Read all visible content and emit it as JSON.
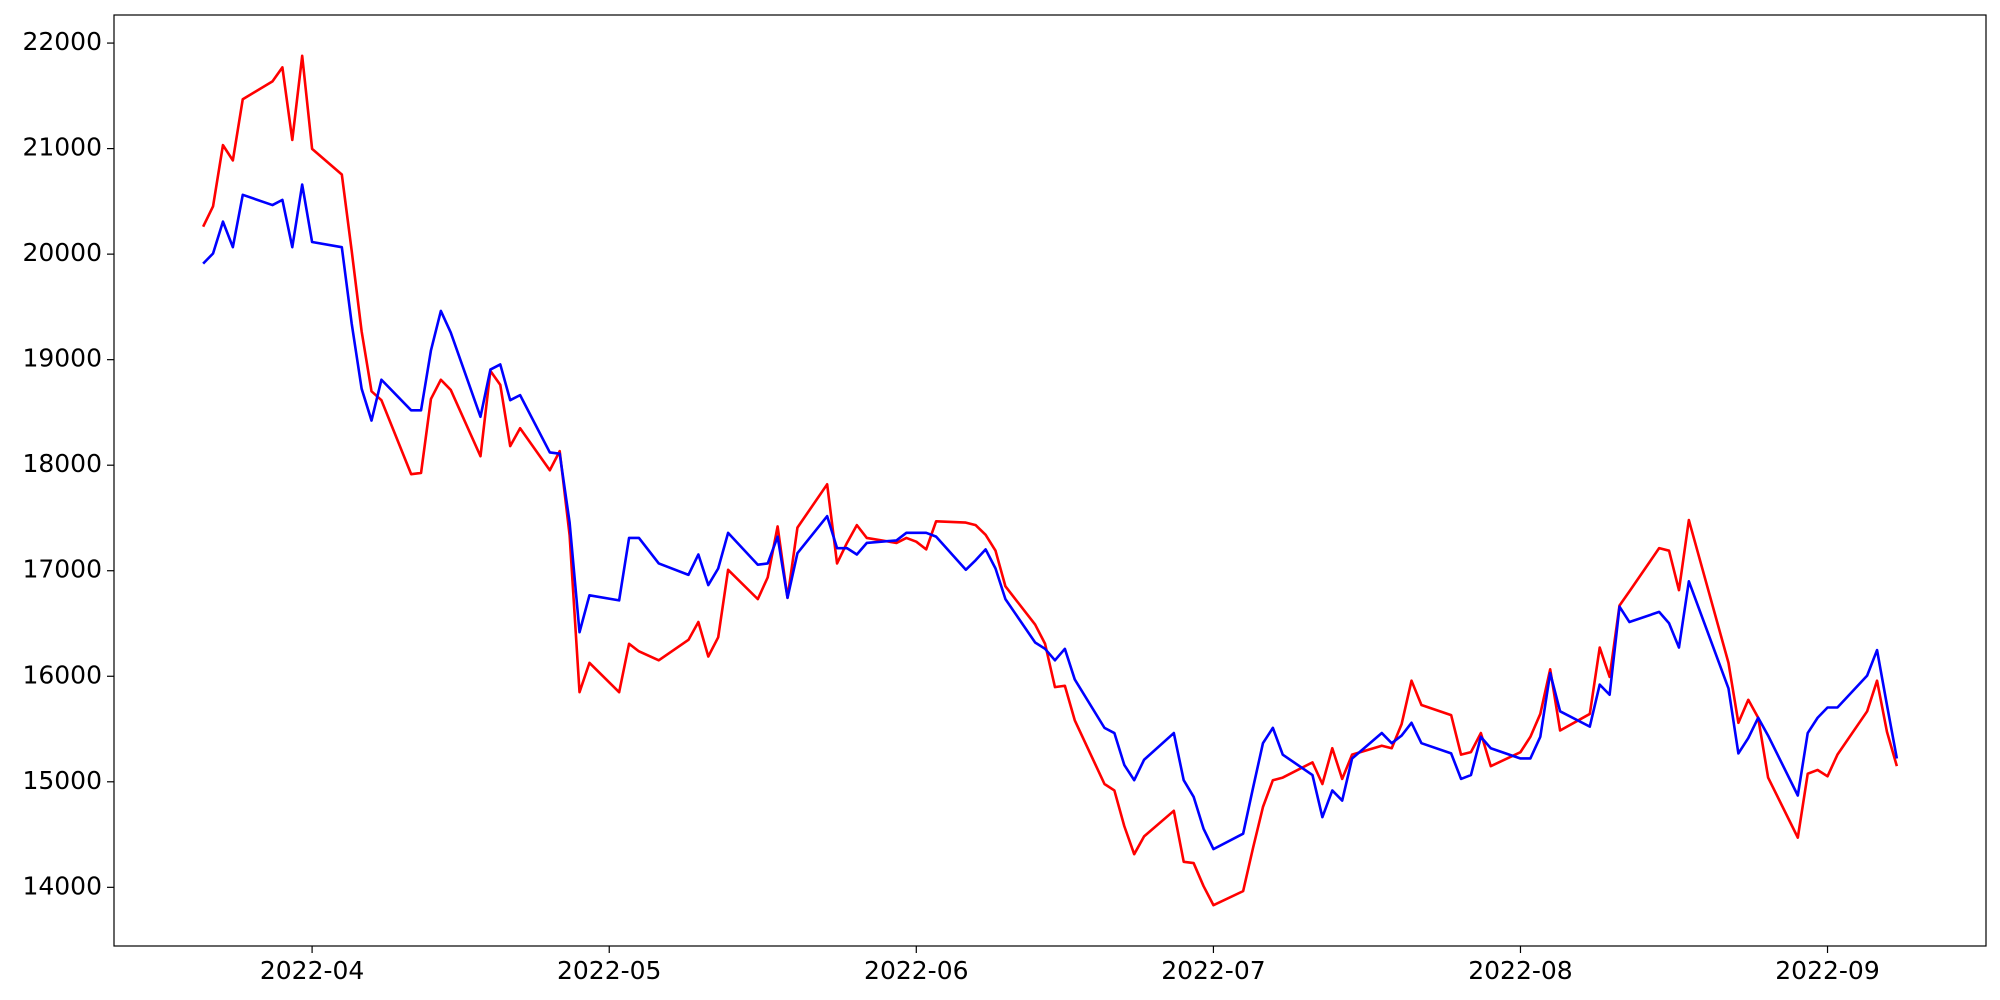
{
  "chart_data": {
    "type": "line",
    "x": [
      "2022-03-21",
      "2022-03-22",
      "2022-03-23",
      "2022-03-24",
      "2022-03-25",
      "2022-03-28",
      "2022-03-29",
      "2022-03-30",
      "2022-03-31",
      "2022-04-01",
      "2022-04-04",
      "2022-04-05",
      "2022-04-06",
      "2022-04-07",
      "2022-04-08",
      "2022-04-11",
      "2022-04-12",
      "2022-04-13",
      "2022-04-14",
      "2022-04-15",
      "2022-04-18",
      "2022-04-19",
      "2022-04-20",
      "2022-04-21",
      "2022-04-22",
      "2022-04-25",
      "2022-04-26",
      "2022-04-27",
      "2022-04-28",
      "2022-04-29",
      "2022-05-02",
      "2022-05-03",
      "2022-05-04",
      "2022-05-06",
      "2022-05-09",
      "2022-05-10",
      "2022-05-11",
      "2022-05-12",
      "2022-05-13",
      "2022-05-16",
      "2022-05-17",
      "2022-05-18",
      "2022-05-19",
      "2022-05-20",
      "2022-05-23",
      "2022-05-24",
      "2022-05-25",
      "2022-05-26",
      "2022-05-27",
      "2022-05-30",
      "2022-05-31",
      "2022-06-01",
      "2022-06-02",
      "2022-06-03",
      "2022-06-06",
      "2022-06-07",
      "2022-06-08",
      "2022-06-09",
      "2022-06-10",
      "2022-06-13",
      "2022-06-14",
      "2022-06-15",
      "2022-06-16",
      "2022-06-17",
      "2022-06-20",
      "2022-06-21",
      "2022-06-22",
      "2022-06-23",
      "2022-06-24",
      "2022-06-27",
      "2022-06-28",
      "2022-06-29",
      "2022-06-30",
      "2022-07-01",
      "2022-07-04",
      "2022-07-05",
      "2022-07-06",
      "2022-07-07",
      "2022-07-08",
      "2022-07-11",
      "2022-07-12",
      "2022-07-13",
      "2022-07-14",
      "2022-07-15",
      "2022-07-18",
      "2022-07-19",
      "2022-07-20",
      "2022-07-21",
      "2022-07-22",
      "2022-07-25",
      "2022-07-26",
      "2022-07-27",
      "2022-07-28",
      "2022-07-29",
      "2022-08-01",
      "2022-08-02",
      "2022-08-03",
      "2022-08-04",
      "2022-08-05",
      "2022-08-08",
      "2022-08-09",
      "2022-08-10",
      "2022-08-11",
      "2022-08-12",
      "2022-08-15",
      "2022-08-16",
      "2022-08-17",
      "2022-08-18",
      "2022-08-22",
      "2022-08-23",
      "2022-08-24",
      "2022-08-25",
      "2022-08-26",
      "2022-08-29",
      "2022-08-30",
      "2022-08-31",
      "2022-09-01",
      "2022-09-02",
      "2022-09-05",
      "2022-09-06",
      "2022-09-07",
      "2022-09-08"
    ],
    "series": [
      {
        "color": "#ff0000",
        "values": [
          20260,
          20453,
          21033,
          20888,
          21468,
          21637,
          21770,
          21082,
          21879,
          20997,
          20755,
          20030,
          19269,
          18700,
          18616,
          17915,
          17927,
          18628,
          18810,
          18713,
          18085,
          18894,
          18761,
          18181,
          18350,
          17952,
          18133,
          17335,
          15849,
          16127,
          15849,
          16308,
          16236,
          16151,
          16345,
          16514,
          16187,
          16369,
          17009,
          16731,
          16937,
          17420,
          16743,
          17408,
          17819,
          17069,
          17263,
          17432,
          17311,
          17263,
          17311,
          17275,
          17202,
          17468,
          17456,
          17432,
          17340,
          17190,
          16852,
          16490,
          16308,
          15897,
          15910,
          15583,
          14979,
          14918,
          14580,
          14314,
          14483,
          14725,
          14242,
          14230,
          14012,
          13831,
          13964,
          14374,
          14761,
          15015,
          15040,
          15184,
          14979,
          15318,
          15027,
          15257,
          15342,
          15318,
          15547,
          15958,
          15728,
          15632,
          15257,
          15281,
          15462,
          15148,
          15281,
          15426,
          15643,
          16066,
          15486,
          15643,
          16272,
          15994,
          16671,
          16804,
          17214,
          17190,
          16816,
          17480,
          16127,
          15559,
          15777,
          15607,
          15040,
          14471,
          15076,
          15112,
          15052,
          15257,
          15668,
          15958,
          15474,
          15148
        ]
      },
      {
        "color": "#0000ff",
        "values": [
          19910,
          20006,
          20308,
          20066,
          20562,
          20465,
          20514,
          20066,
          20659,
          20115,
          20066,
          19341,
          18725,
          18423,
          18810,
          18520,
          18520,
          19088,
          19462,
          19257,
          18459,
          18906,
          18955,
          18616,
          18664,
          18121,
          18109,
          17456,
          16417,
          16767,
          16719,
          17311,
          17311,
          17069,
          16961,
          17154,
          16864,
          17021,
          17359,
          17057,
          17069,
          17323,
          16743,
          17166,
          17517,
          17214,
          17214,
          17154,
          17263,
          17287,
          17359,
          17359,
          17359,
          17323,
          17009,
          17100,
          17202,
          17021,
          16731,
          16320,
          16260,
          16151,
          16260,
          15970,
          15511,
          15462,
          15160,
          15015,
          15209,
          15462,
          15015,
          14858,
          14556,
          14362,
          14508,
          14943,
          15366,
          15511,
          15257,
          15064,
          14665,
          14918,
          14822,
          15221,
          15462,
          15366,
          15438,
          15559,
          15366,
          15269,
          15027,
          15064,
          15426,
          15318,
          15221,
          15221,
          15426,
          16030,
          15668,
          15523,
          15921,
          15825,
          16659,
          16514,
          16610,
          16502,
          16272,
          16900,
          15885,
          15269,
          15414,
          15607,
          15438,
          14870,
          15462,
          15607,
          15704,
          15704,
          16006,
          16248,
          15728,
          15221
        ]
      }
    ],
    "xlim": [
      "2022-03-12",
      "2022-09-17"
    ],
    "xticks": [
      {
        "value": "2022-04-01",
        "label": "2022-04"
      },
      {
        "value": "2022-05-01",
        "label": "2022-05"
      },
      {
        "value": "2022-06-01",
        "label": "2022-06"
      },
      {
        "value": "2022-07-01",
        "label": "2022-07"
      },
      {
        "value": "2022-08-01",
        "label": "2022-08"
      },
      {
        "value": "2022-09-01",
        "label": "2022-09"
      }
    ],
    "ylim": [
      13444,
      22266
    ],
    "yticks": [
      14000,
      15000,
      16000,
      17000,
      18000,
      19000,
      20000,
      21000,
      22000
    ],
    "grid": false
  }
}
